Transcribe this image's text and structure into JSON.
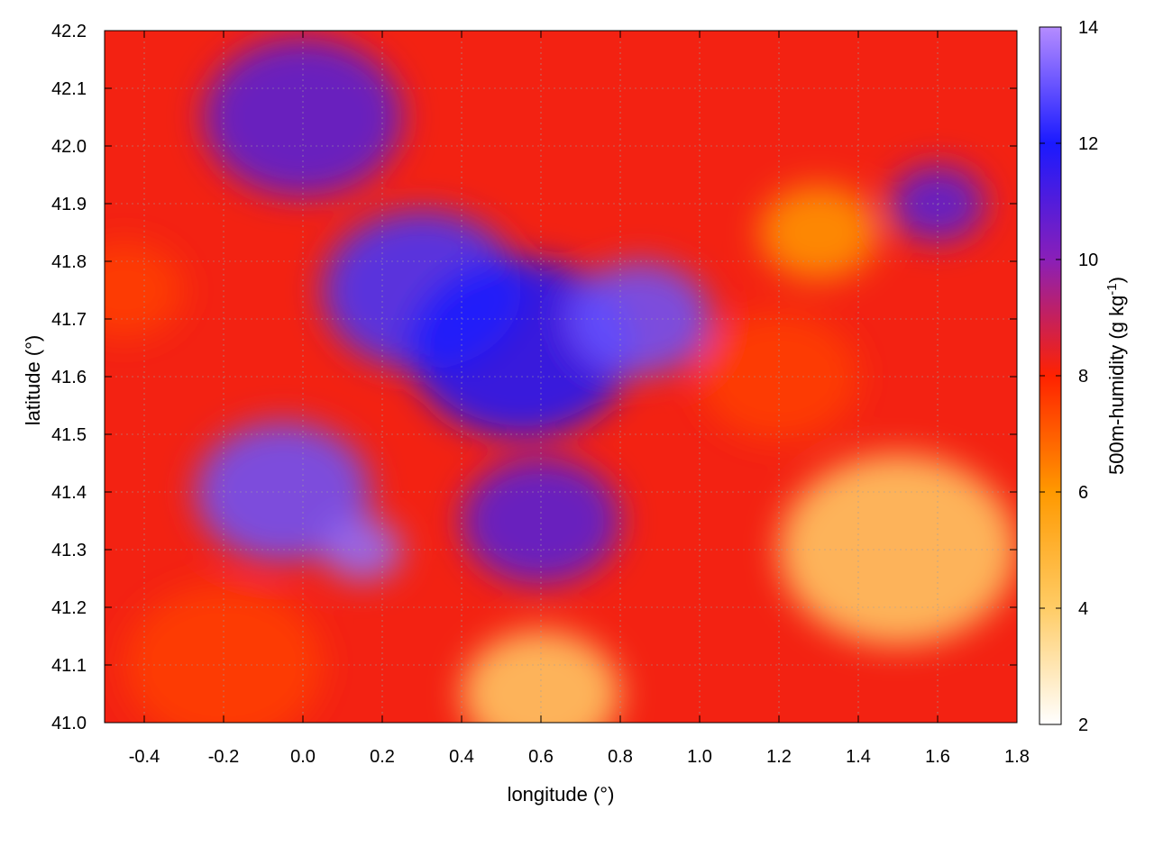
{
  "chart_data": {
    "type": "heatmap",
    "title": "",
    "xlabel": "longitude (°)",
    "ylabel": "latitude (°)",
    "colorbar_label": "500m-humidity (g kg",
    "colorbar_label_sup": "-1",
    "colorbar_label_end": ")",
    "xlim": [
      -0.5,
      1.8
    ],
    "ylim": [
      41.0,
      42.2
    ],
    "clim": [
      2,
      14
    ],
    "x_ticks": [
      -0.4,
      -0.2,
      0.0,
      0.2,
      0.4,
      0.6,
      0.8,
      1.0,
      1.2,
      1.4,
      1.6,
      1.8
    ],
    "x_tick_labels": [
      "-0.4",
      "-0.2",
      "0.0",
      "0.2",
      "0.4",
      "0.6",
      "0.8",
      "1.0",
      "1.2",
      "1.4",
      "1.6",
      "1.8"
    ],
    "y_ticks": [
      41.0,
      41.1,
      41.2,
      41.3,
      41.4,
      41.5,
      41.6,
      41.7,
      41.8,
      41.9,
      42.0,
      42.1,
      42.2
    ],
    "y_tick_labels": [
      "41.0",
      "41.1",
      "41.2",
      "41.3",
      "41.4",
      "41.5",
      "41.6",
      "41.7",
      "41.8",
      "41.9",
      "42.0",
      "42.1",
      "42.2"
    ],
    "colorbar_ticks": [
      2,
      4,
      6,
      8,
      10,
      12,
      14
    ],
    "colorbar_tick_labels": [
      "2",
      "4",
      "6",
      "8",
      "10",
      "12",
      "14"
    ],
    "colormap": [
      {
        "value": 2,
        "color": "#ffffff"
      },
      {
        "value": 4,
        "color": "#ffcc66"
      },
      {
        "value": 6,
        "color": "#ff9900"
      },
      {
        "value": 8,
        "color": "#ff2200"
      },
      {
        "value": 10,
        "color": "#8a1fb8"
      },
      {
        "value": 12,
        "color": "#1a1aff"
      },
      {
        "value": 14,
        "color": "#b58cff"
      }
    ],
    "regions": [
      {
        "lon": -0.05,
        "lat": 41.4,
        "value": 13.0,
        "r": 0.22
      },
      {
        "lon": 0.15,
        "lat": 41.3,
        "value": 13.5,
        "r": 0.1
      },
      {
        "lon": 0.3,
        "lat": 41.75,
        "value": 12.5,
        "r": 0.25
      },
      {
        "lon": 0.55,
        "lat": 41.65,
        "value": 12.0,
        "r": 0.28
      },
      {
        "lon": 0.85,
        "lat": 41.7,
        "value": 13.0,
        "r": 0.18
      },
      {
        "lon": 0.0,
        "lat": 42.05,
        "value": 11.0,
        "r": 0.25
      },
      {
        "lon": 0.6,
        "lat": 41.35,
        "value": 11.0,
        "r": 0.2
      },
      {
        "lon": 1.6,
        "lat": 41.9,
        "value": 11.0,
        "r": 0.12
      },
      {
        "lon": -0.45,
        "lat": 41.75,
        "value": 7.5,
        "r": 0.15
      },
      {
        "lon": 1.3,
        "lat": 41.85,
        "value": 6.0,
        "r": 0.15
      },
      {
        "lon": 1.5,
        "lat": 41.3,
        "value": 4.0,
        "r": 0.3
      },
      {
        "lon": 0.6,
        "lat": 41.05,
        "value": 4.0,
        "r": 0.2
      },
      {
        "lon": -0.2,
        "lat": 41.1,
        "value": 7.5,
        "r": 0.25
      },
      {
        "lon": 1.2,
        "lat": 41.6,
        "value": 7.5,
        "r": 0.2
      }
    ]
  }
}
